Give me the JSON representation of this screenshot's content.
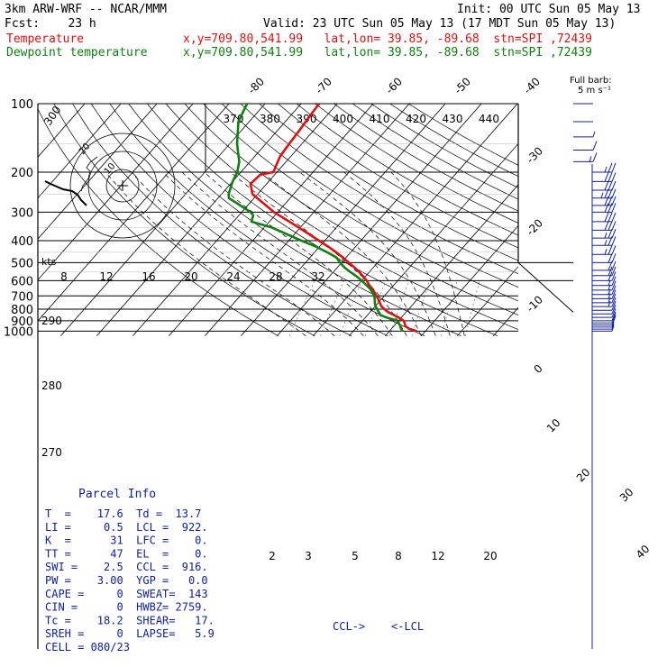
{
  "header": {
    "model": "3km ARW-WRF -- NCAR/MMM",
    "init": "Init: 00 UTC Sun 05 May 13",
    "fcst": "Fcst:    23 h",
    "valid": "Valid: 23 UTC Sun 05 May 13 (17 MDT Sun 05 May 13)",
    "temp_label": "Temperature",
    "temp_loc": "x,y=709.80,541.99   lat,lon= 39.85, -89.68  stn=SPI ,72439",
    "dew_label": "Dewpoint temperature",
    "dew_loc": "x,y=709.80,541.99   lat,lon= 39.85, -89.68  stn=SPI ,72439"
  },
  "colors": {
    "temperature": "#e01010",
    "dewpoint": "#108010",
    "parcel_text": "#1020a0"
  },
  "barb_legend": {
    "line1": "Full barb:",
    "line2": "5 m s⁻¹"
  },
  "hodograph": {
    "units": "kts",
    "ring_labels": [
      "10",
      "20"
    ]
  },
  "chart_data": {
    "type": "skew-T log-P",
    "pressure_labels": [
      "100",
      "200",
      "300",
      "400",
      "500",
      "600",
      "700",
      "800",
      "900",
      "1000"
    ],
    "isotherm_labels": [
      "-80",
      "-70",
      "-60",
      "-50",
      "-40",
      "-30",
      "-20",
      "-10",
      "0",
      "10",
      "20",
      "30",
      "40"
    ],
    "dry_adiabat_labels": [
      "370",
      "380",
      "390",
      "400",
      "410",
      "420",
      "430",
      "440"
    ],
    "dry_adiabat_left_labels": [
      "300",
      "290",
      "280",
      "270"
    ],
    "moist_adiabat_labels": [
      "8",
      "12",
      "16",
      "20",
      "24",
      "28",
      "32"
    ],
    "mixing_ratio_labels": [
      "2",
      "3",
      "5",
      "8",
      "12",
      "20"
    ],
    "series": [
      {
        "name": "Temperature",
        "p": [
          1000,
          975,
          950,
          925,
          900,
          875,
          850,
          825,
          800,
          775,
          750,
          725,
          700,
          675,
          650,
          625,
          600,
          575,
          550,
          525,
          500,
          475,
          450,
          425,
          400,
          350,
          300,
          250,
          225,
          205,
          200,
          170,
          150,
          130,
          115,
          100
        ],
        "t": [
          17.6,
          14.8,
          13.2,
          12.4,
          11.4,
          9.6,
          7.4,
          5.0,
          3.2,
          1.6,
          0.4,
          -0.8,
          -2.2,
          -3.6,
          -5.2,
          -7.0,
          -8.6,
          -10.6,
          -12.8,
          -15.2,
          -18.0,
          -20.8,
          -24.0,
          -27.6,
          -31.6,
          -40.5,
          -51.0,
          -61.4,
          -64.5,
          -64.0,
          -61.0,
          -63.0,
          -63.5,
          -64.0,
          -64.5,
          -65.0
        ]
      },
      {
        "name": "Dewpoint temperature",
        "p": [
          1000,
          975,
          950,
          925,
          900,
          875,
          850,
          825,
          800,
          775,
          750,
          725,
          700,
          675,
          650,
          625,
          600,
          575,
          550,
          525,
          500,
          475,
          450,
          425,
          400,
          350,
          330,
          310,
          300,
          260,
          250,
          220,
          200,
          180,
          150,
          120,
          100
        ],
        "t": [
          13.7,
          12.6,
          11.8,
          10.8,
          9.8,
          6.4,
          3.6,
          2.4,
          1.2,
          0.0,
          -1.0,
          -1.8,
          -2.8,
          -4.2,
          -5.8,
          -7.8,
          -10.0,
          -12.4,
          -15.2,
          -18.0,
          -20.4,
          -22.6,
          -26.5,
          -31.0,
          -36.5,
          -48.0,
          -55.0,
          -56.0,
          -57.5,
          -67.0,
          -68.0,
          -70.0,
          -71.0,
          -73.0,
          -78.0,
          -83.0,
          -85.0
        ]
      }
    ],
    "wind_profile": {
      "units": "m/s",
      "p": [
        1000,
        980,
        960,
        940,
        920,
        900,
        870,
        840,
        810,
        780,
        750,
        720,
        690,
        660,
        630,
        600,
        570,
        540,
        500,
        460,
        420,
        390,
        360,
        330,
        300,
        280,
        260,
        240,
        220,
        200,
        180,
        160,
        140,
        120,
        100
      ],
      "speed": [
        6,
        8,
        9,
        10,
        10,
        11,
        12,
        13,
        14,
        15,
        16,
        16,
        17,
        18,
        19,
        20,
        21,
        22,
        24,
        26,
        27,
        28,
        30,
        32,
        33,
        34,
        35,
        33,
        30,
        25,
        18,
        12,
        7,
        3,
        2
      ],
      "dir": [
        220,
        225,
        230,
        235,
        240,
        240,
        245,
        245,
        250,
        250,
        250,
        255,
        255,
        255,
        260,
        260,
        260,
        265,
        265,
        265,
        270,
        270,
        270,
        270,
        270,
        270,
        270,
        265,
        265,
        260,
        255,
        250,
        250,
        270,
        280
      ]
    },
    "levels": {
      "lcl_label": "<-LCL",
      "ccl_label": "CCL->"
    }
  },
  "parcel_info": {
    "title": "Parcel Info",
    "rows": [
      "T  =    17.6  Td =  13.7",
      "LI =     0.5  LCL =  922.",
      "K  =      31  LFC =    0.",
      "TT =      47  EL  =    0.",
      "SWI =    2.5  CCL =  916.",
      "PW =    3.00  YGP =   0.0",
      "CAPE =     0  SWEAT=  143",
      "CIN =      0  HWBZ= 2759.",
      "Tc =    18.2  SHEAR=   17.",
      "SREH =     0  LAPSE=   5.9",
      "CELL = 080/23"
    ]
  }
}
